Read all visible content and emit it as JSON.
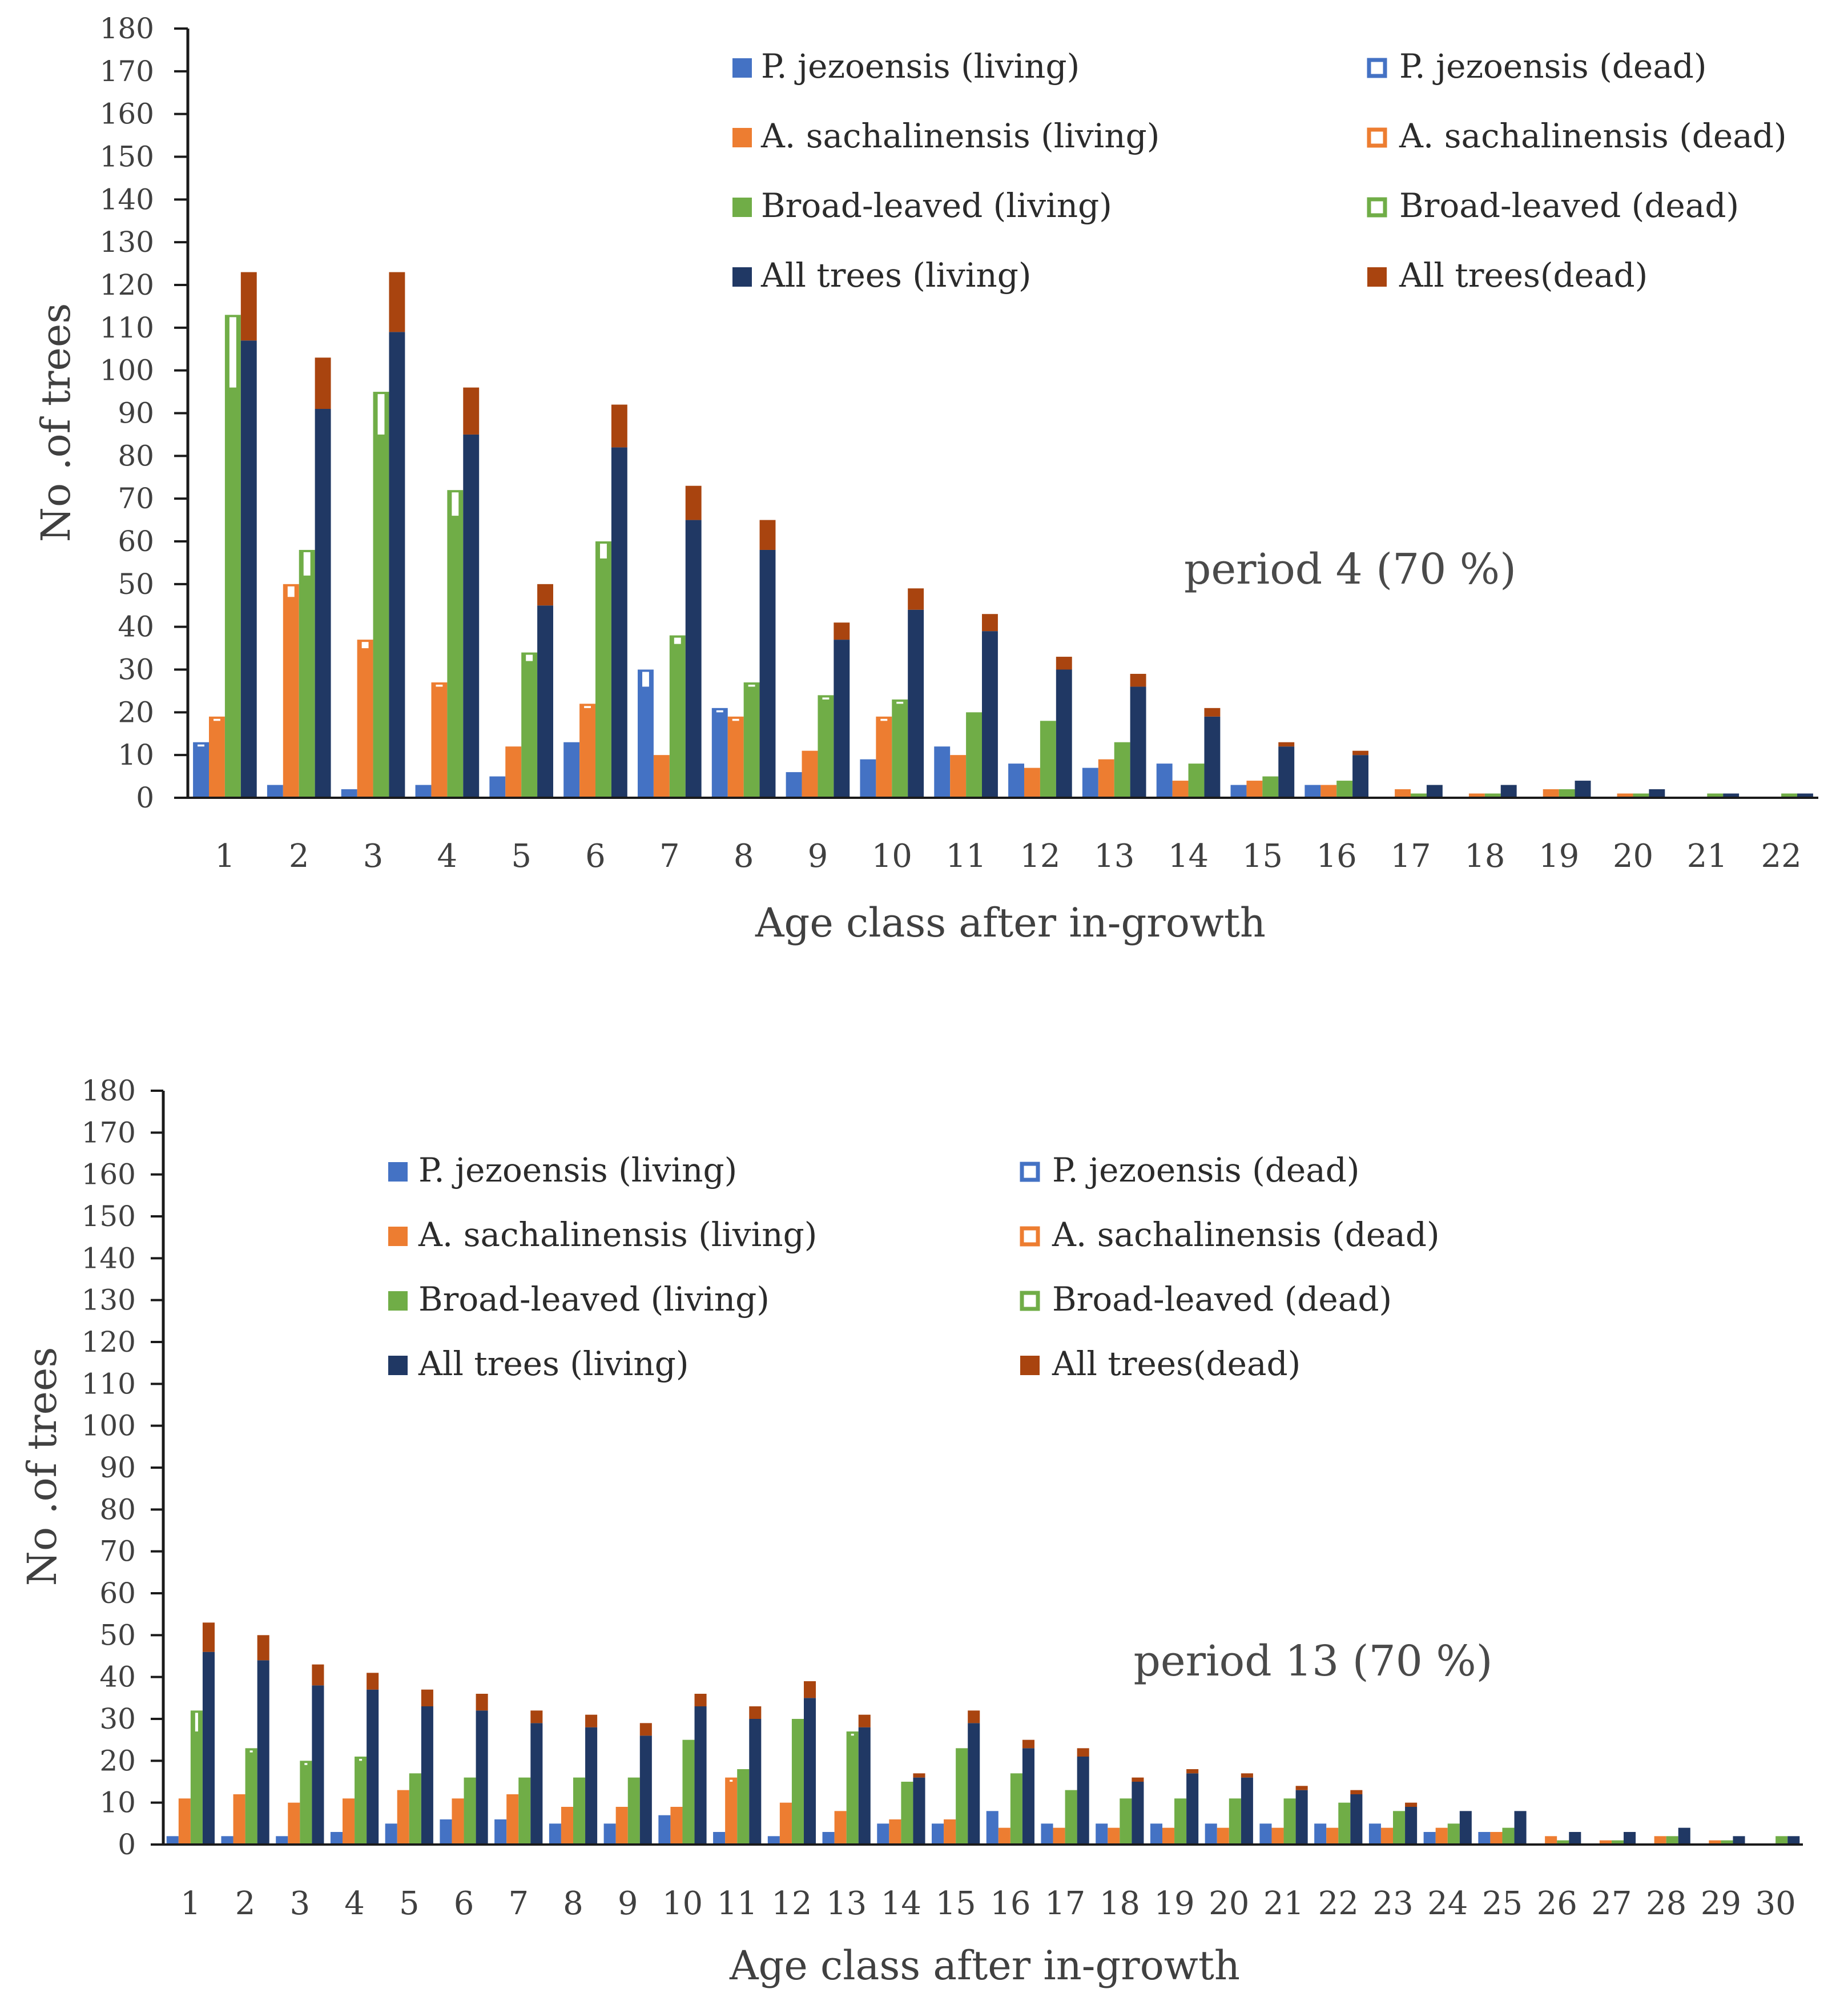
{
  "figure": {
    "legend": {
      "pj_living": "P. jezoensis  (living)",
      "pj_dead": "P. jezoensis  (dead)",
      "as_living": "A. sachalinensis  (living)",
      "as_dead": "A. sachalinensis (dead)",
      "bl_living": "Broad-leaved (living)",
      "bl_dead": "Broad-leaved (dead)",
      "all_living": "All trees (living)",
      "all_dead": "All trees(dead)"
    },
    "colors": {
      "pj": "#4472C4",
      "as": "#ED7D31",
      "bl": "#70AD47",
      "all_living": "#203864",
      "all_dead": "#A9440F",
      "axis": "#1a1a1a"
    }
  },
  "chart_data": [
    {
      "type": "bar",
      "name": "period-4",
      "annotation": "period 4 (70 %)",
      "xlabel": "Age class after in-growth",
      "ylabel": "No .of trees",
      "ylim": [
        0,
        180
      ],
      "ytick_step": 10,
      "yticks": [
        "0",
        "10",
        "20",
        "30",
        "40",
        "50",
        "60",
        "70",
        "80",
        "90",
        "100",
        "110",
        "120",
        "130",
        "140",
        "150",
        "160",
        "170",
        "180"
      ],
      "categories": [
        "1",
        "2",
        "3",
        "4",
        "5",
        "6",
        "7",
        "8",
        "9",
        "10",
        "11",
        "12",
        "13",
        "14",
        "15",
        "16",
        "17",
        "18",
        "19",
        "20",
        "21",
        "22"
      ],
      "series": [
        {
          "name": "P. jezoensis",
          "living": [
            12,
            3,
            2,
            3,
            5,
            13,
            26,
            20,
            6,
            9,
            12,
            8,
            7,
            8,
            3,
            3,
            0,
            0,
            0,
            0,
            0,
            0
          ],
          "dead": [
            1,
            0,
            0,
            0,
            0,
            0,
            4,
            1,
            0,
            0,
            0,
            0,
            0,
            0,
            0,
            0,
            0,
            0,
            0,
            0,
            0,
            0
          ]
        },
        {
          "name": "A. sachalinensis",
          "living": [
            18,
            47,
            35,
            26,
            12,
            21,
            10,
            18,
            11,
            18,
            10,
            7,
            9,
            4,
            4,
            3,
            2,
            1,
            2,
            1,
            0,
            0
          ],
          "dead": [
            1,
            3,
            2,
            1,
            0,
            1,
            0,
            1,
            0,
            1,
            0,
            0,
            0,
            0,
            0,
            0,
            0,
            0,
            0,
            0,
            0,
            0
          ]
        },
        {
          "name": "Broad-leaved",
          "living": [
            96,
            52,
            85,
            66,
            32,
            56,
            36,
            26,
            23,
            22,
            20,
            18,
            13,
            8,
            5,
            4,
            1,
            1,
            2,
            1,
            1,
            1
          ],
          "dead": [
            17,
            6,
            10,
            6,
            2,
            4,
            2,
            1,
            1,
            1,
            0,
            0,
            0,
            0,
            0,
            0,
            0,
            0,
            0,
            0,
            0,
            0
          ]
        },
        {
          "name": "All trees",
          "living": [
            107,
            91,
            109,
            85,
            45,
            82,
            65,
            58,
            37,
            44,
            39,
            30,
            26,
            19,
            12,
            10,
            3,
            3,
            4,
            2,
            1,
            1
          ],
          "dead": [
            16,
            12,
            14,
            11,
            5,
            10,
            8,
            7,
            4,
            5,
            4,
            3,
            3,
            2,
            1,
            1,
            0,
            0,
            0,
            0,
            0,
            0
          ]
        }
      ]
    },
    {
      "type": "bar",
      "name": "period-13",
      "annotation": "period 13 (70 %)",
      "xlabel": "Age class after in-growth",
      "ylabel": "No .of trees",
      "ylim": [
        0,
        180
      ],
      "ytick_step": 10,
      "yticks": [
        "0",
        "10",
        "20",
        "30",
        "40",
        "50",
        "60",
        "70",
        "80",
        "90",
        "100",
        "110",
        "120",
        "130",
        "140",
        "150",
        "160",
        "170",
        "180"
      ],
      "categories": [
        "1",
        "2",
        "3",
        "4",
        "5",
        "6",
        "7",
        "8",
        "9",
        "10",
        "11",
        "12",
        "13",
        "14",
        "15",
        "16",
        "17",
        "18",
        "19",
        "20",
        "21",
        "22",
        "23",
        "24",
        "25",
        "26",
        "27",
        "28",
        "29",
        "30"
      ],
      "series": [
        {
          "name": "P. jezoensis",
          "living": [
            2,
            2,
            2,
            3,
            5,
            6,
            6,
            5,
            5,
            7,
            3,
            2,
            3,
            5,
            5,
            8,
            5,
            5,
            5,
            5,
            5,
            5,
            5,
            3,
            3,
            0,
            0,
            0,
            0,
            0
          ],
          "dead": [
            0,
            0,
            0,
            0,
            0,
            0,
            0,
            0,
            0,
            0,
            0,
            0,
            0,
            0,
            0,
            0,
            0,
            0,
            0,
            0,
            0,
            0,
            0,
            0,
            0,
            0,
            0,
            0,
            0,
            0
          ]
        },
        {
          "name": "A. sachalinensis",
          "living": [
            11,
            12,
            10,
            11,
            13,
            11,
            12,
            9,
            9,
            9,
            15,
            10,
            8,
            6,
            6,
            4,
            4,
            4,
            4,
            4,
            4,
            4,
            4,
            4,
            3,
            2,
            1,
            2,
            1,
            0
          ],
          "dead": [
            0,
            0,
            0,
            0,
            0,
            0,
            0,
            0,
            0,
            0,
            1,
            0,
            0,
            0,
            0,
            0,
            0,
            0,
            0,
            0,
            0,
            0,
            0,
            0,
            0,
            0,
            0,
            0,
            0,
            0
          ]
        },
        {
          "name": "Broad-leaved",
          "living": [
            27,
            22,
            19,
            20,
            17,
            16,
            16,
            16,
            16,
            25,
            18,
            30,
            26,
            15,
            23,
            17,
            13,
            11,
            11,
            11,
            11,
            10,
            8,
            5,
            4,
            1,
            1,
            2,
            1,
            2
          ],
          "dead": [
            5,
            1,
            1,
            1,
            0,
            0,
            0,
            0,
            0,
            0,
            0,
            0,
            1,
            0,
            0,
            0,
            0,
            0,
            0,
            0,
            0,
            0,
            0,
            0,
            0,
            0,
            0,
            0,
            0,
            0
          ]
        },
        {
          "name": "All trees",
          "living": [
            46,
            44,
            38,
            37,
            33,
            32,
            29,
            28,
            26,
            33,
            30,
            35,
            28,
            16,
            29,
            23,
            21,
            15,
            17,
            16,
            13,
            12,
            9,
            8,
            8,
            3,
            3,
            4,
            2,
            2
          ],
          "dead": [
            7,
            6,
            5,
            4,
            4,
            4,
            3,
            3,
            3,
            3,
            3,
            4,
            3,
            1,
            3,
            2,
            2,
            1,
            1,
            1,
            1,
            1,
            1,
            0,
            0,
            0,
            0,
            0,
            0,
            0
          ]
        }
      ]
    }
  ]
}
